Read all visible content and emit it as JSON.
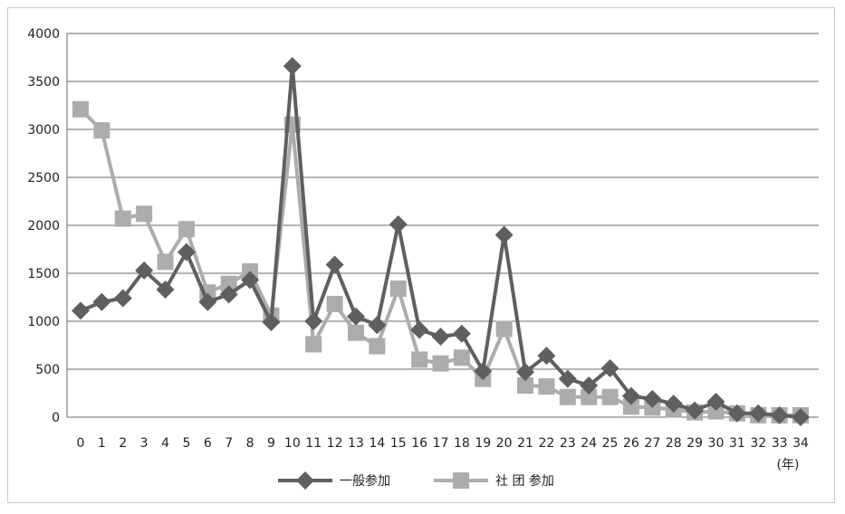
{
  "chart_data": {
    "type": "line",
    "x_unit": "(年)",
    "x": [
      0,
      1,
      2,
      3,
      4,
      5,
      6,
      7,
      8,
      9,
      10,
      11,
      12,
      13,
      14,
      15,
      16,
      17,
      18,
      19,
      20,
      21,
      22,
      23,
      24,
      25,
      26,
      27,
      28,
      29,
      30,
      31,
      32,
      33,
      34
    ],
    "ylim": [
      0,
      4000
    ],
    "yticks": [
      0,
      500,
      1000,
      1500,
      2000,
      2500,
      3000,
      3500,
      4000
    ],
    "grid": true,
    "legend_position": "bottom",
    "series": [
      {
        "name": "一般参加",
        "color": "#5f5f5f",
        "marker": "diamond",
        "values": [
          1110,
          1200,
          1240,
          1530,
          1330,
          1720,
          1200,
          1280,
          1430,
          990,
          3660,
          1000,
          1590,
          1050,
          960,
          2010,
          910,
          840,
          870,
          480,
          1900,
          470,
          640,
          400,
          330,
          510,
          220,
          190,
          140,
          70,
          160,
          40,
          40,
          20,
          0
        ]
      },
      {
        "name": "社 团 参加",
        "color": "#acacac",
        "marker": "square",
        "values": [
          3210,
          2990,
          2070,
          2120,
          1620,
          1960,
          1300,
          1390,
          1520,
          1060,
          3050,
          760,
          1180,
          880,
          740,
          1340,
          600,
          560,
          620,
          400,
          920,
          330,
          320,
          210,
          210,
          210,
          110,
          100,
          80,
          50,
          60,
          40,
          20,
          20,
          20
        ]
      }
    ]
  }
}
